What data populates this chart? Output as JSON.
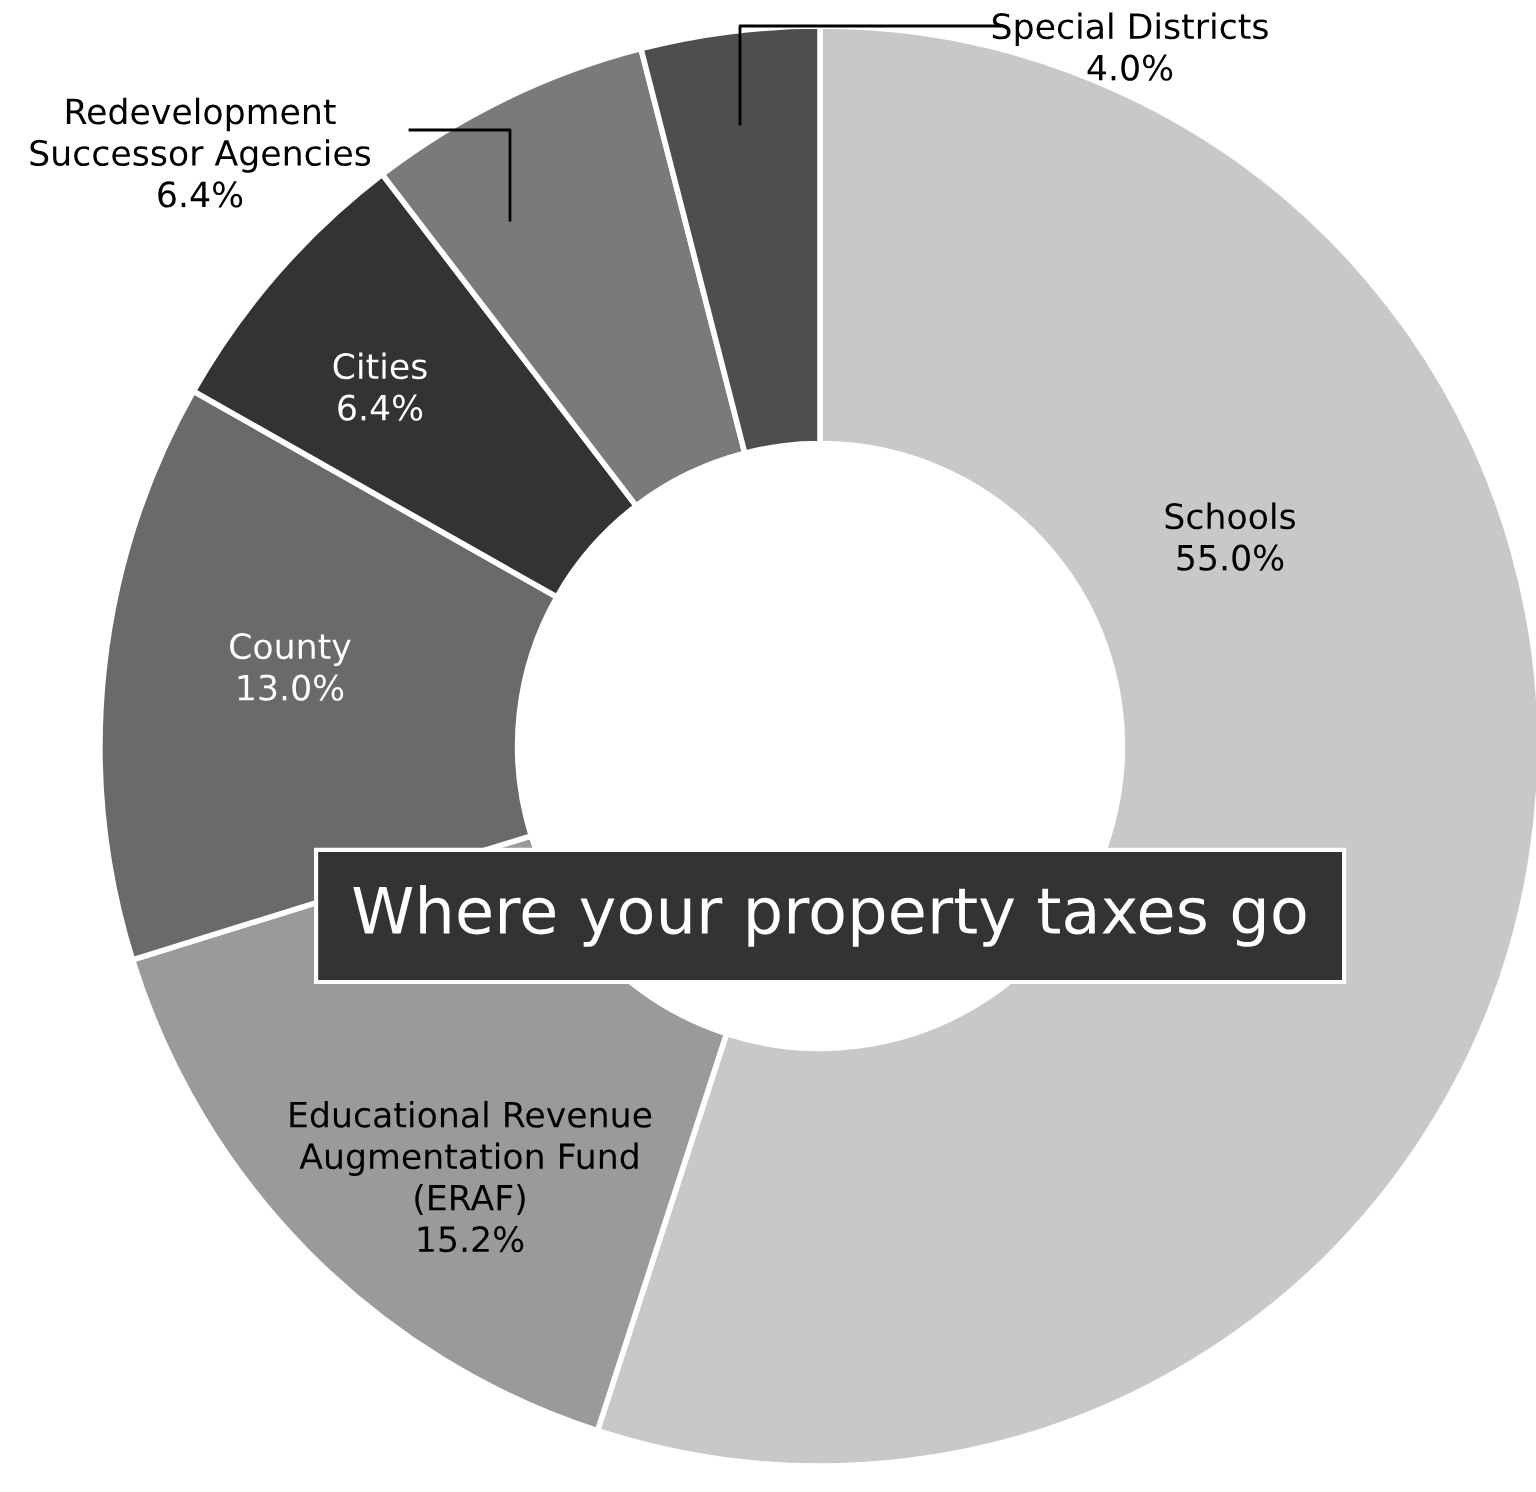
{
  "chart_data": {
    "type": "donut",
    "title": "Where your property taxes go",
    "categories": [
      "Schools",
      "Educational Revenue Augmentation Fund (ERAF)",
      "County",
      "Cities",
      "Redevelopment Successor Agencies",
      "Special Districts"
    ],
    "values": [
      55.0,
      15.2,
      13.0,
      6.4,
      6.4,
      4.0
    ],
    "colors": [
      "#c8c8c8",
      "#9a9a9a",
      "#6a6a6a",
      "#333333",
      "#7a7a7a",
      "#4e4e4e"
    ],
    "value_labels": [
      "55.0%",
      "15.2%",
      "13.0%",
      "6.4%",
      "6.4%",
      "4.0%"
    ]
  }
}
